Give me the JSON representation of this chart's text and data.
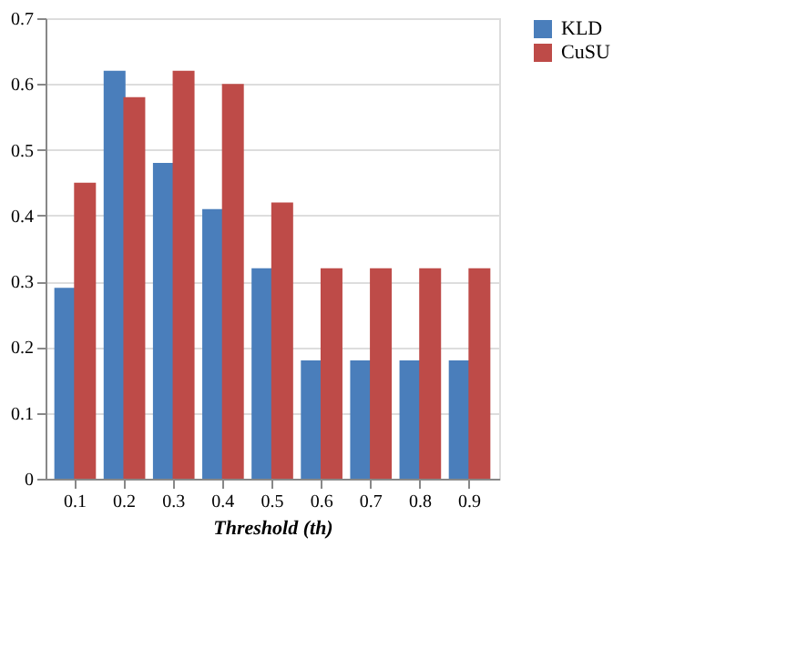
{
  "chart_data": {
    "type": "bar",
    "xlabel": "Threshold (th)",
    "categories": [
      "0.1",
      "0.2",
      "0.3",
      "0.4",
      "0.5",
      "0.6",
      "0.7",
      "0.8",
      "0.9"
    ],
    "series": [
      {
        "name": "KLD",
        "color": "#4a7ebb",
        "values": [
          0.29,
          0.62,
          0.48,
          0.41,
          0.32,
          0.18,
          0.18,
          0.18,
          0.18
        ]
      },
      {
        "name": "CuSU",
        "color": "#be4b48",
        "values": [
          0.45,
          0.58,
          0.62,
          0.6,
          0.42,
          0.32,
          0.32,
          0.32,
          0.32
        ]
      }
    ],
    "ylim": [
      0,
      0.7
    ],
    "yticks": [
      0,
      0.1,
      0.2,
      0.3,
      0.4,
      0.5,
      0.6,
      0.7
    ],
    "grid": "y",
    "legend": "right"
  }
}
